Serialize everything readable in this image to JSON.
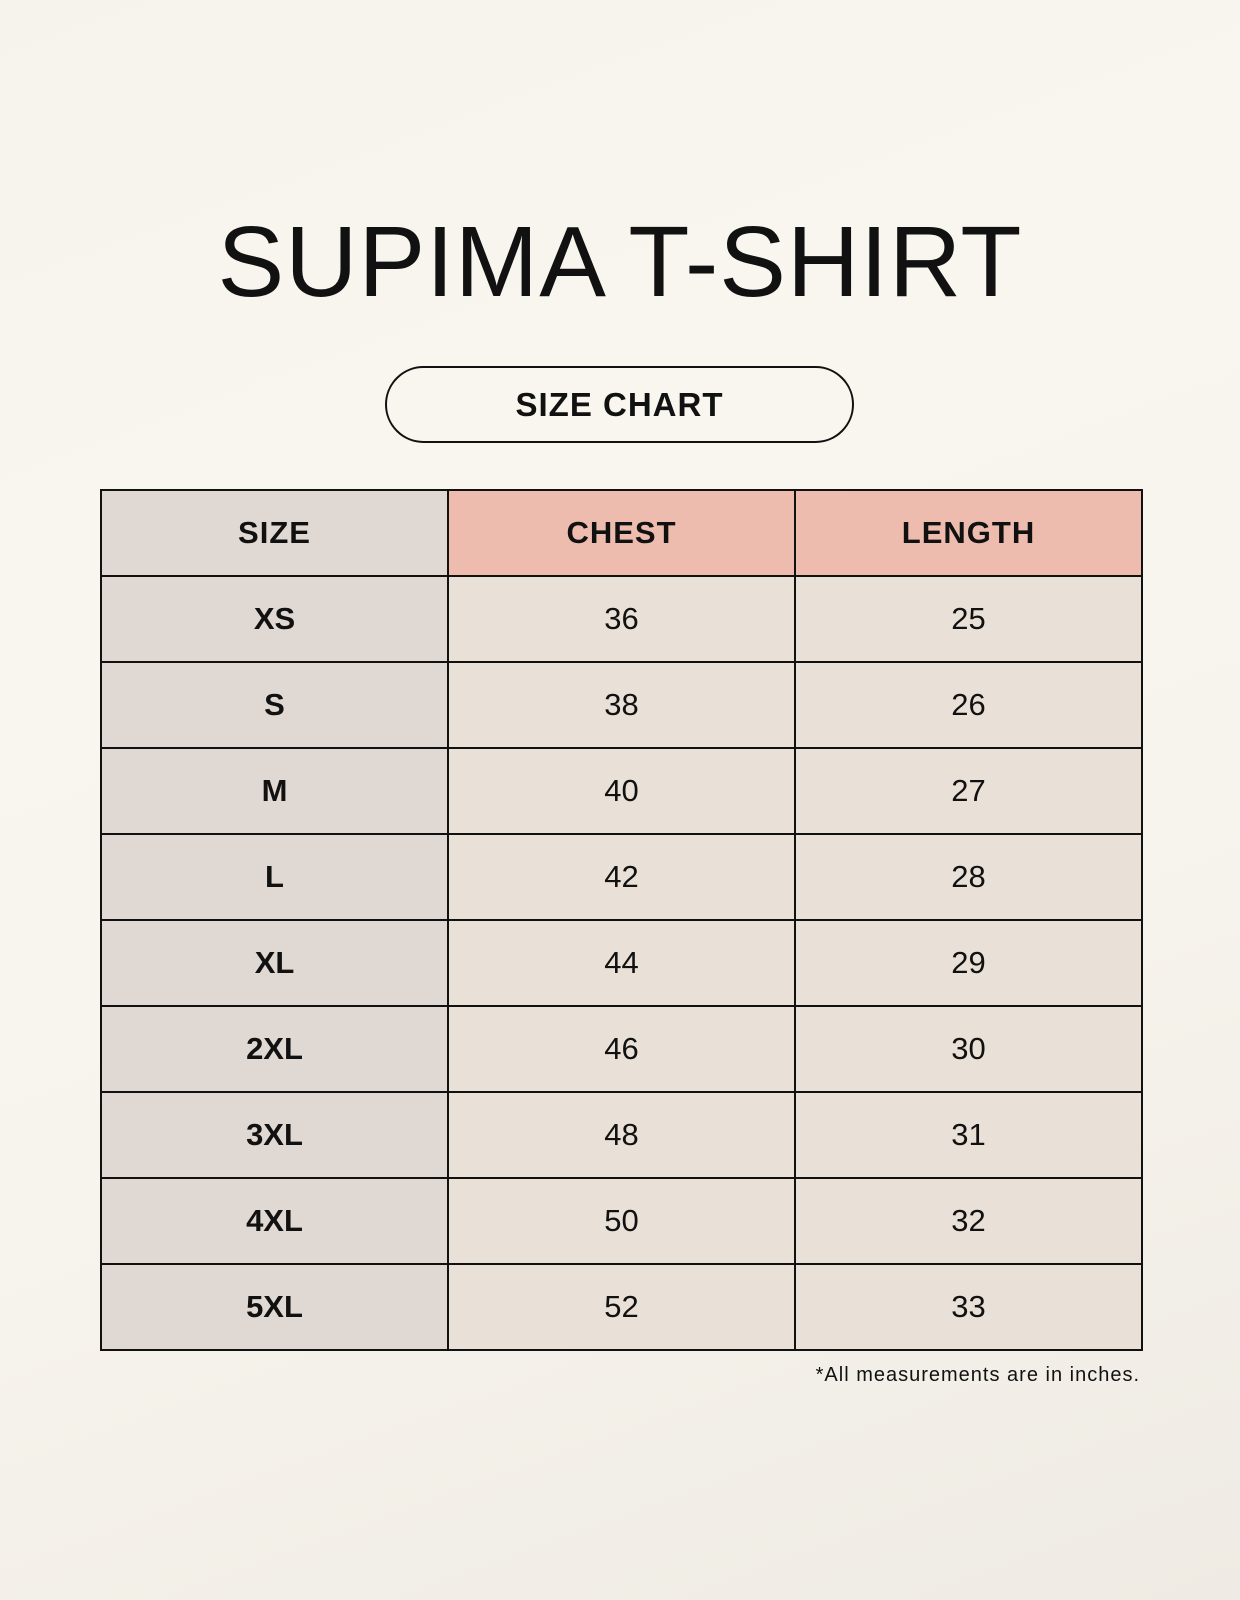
{
  "title": "SUPIMA T-SHIRT",
  "subtitle": "SIZE CHART",
  "table": {
    "headers": [
      "SIZE",
      "CHEST",
      "LENGTH"
    ],
    "rows": [
      [
        "XS",
        "36",
        "25"
      ],
      [
        "S",
        "38",
        "26"
      ],
      [
        "M",
        "40",
        "27"
      ],
      [
        "L",
        "42",
        "28"
      ],
      [
        "XL",
        "44",
        "29"
      ],
      [
        "2XL",
        "46",
        "30"
      ],
      [
        "3XL",
        "48",
        "31"
      ],
      [
        "4XL",
        "50",
        "32"
      ],
      [
        "5XL",
        "52",
        "33"
      ]
    ]
  },
  "footnote": "*All measurements are in inches.",
  "colors": {
    "size_column": "#e0d8d2",
    "header_accent": "#edbcae",
    "value_cells": "#e9e1d7"
  }
}
